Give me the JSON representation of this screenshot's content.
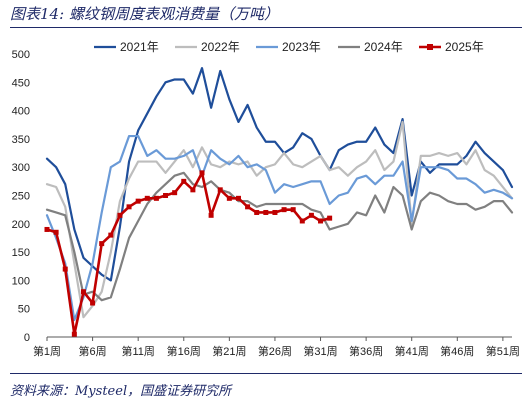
{
  "figure": {
    "title_prefix": "图表14:",
    "title_text": "螺纹钢周度表观消费量（万吨）",
    "source": "资料来源：Mysteel，国盛证券研究所"
  },
  "chart_data": {
    "type": "line",
    "ylim": [
      0,
      500
    ],
    "yticks": [
      0,
      50,
      100,
      150,
      200,
      250,
      300,
      350,
      400,
      450,
      500
    ],
    "xlim": [
      1,
      52
    ],
    "xticks": [
      1,
      6,
      11,
      16,
      21,
      26,
      31,
      36,
      41,
      46,
      51
    ],
    "xtick_labels": [
      "第1周",
      "第6周",
      "第11周",
      "第16周",
      "第21周",
      "第26周",
      "第31周",
      "第36周",
      "第41周",
      "第46周",
      "第51周"
    ],
    "legend_position": "top",
    "grid": false,
    "series": [
      {
        "name": "2021年",
        "color": "#1f4e9a",
        "width": 2.2,
        "marker": false,
        "values": [
          315,
          300,
          270,
          190,
          140,
          125,
          110,
          100,
          195,
          310,
          365,
          395,
          425,
          450,
          455,
          455,
          430,
          475,
          405,
          470,
          420,
          380,
          410,
          370,
          345,
          345,
          325,
          335,
          360,
          350,
          320,
          295,
          330,
          340,
          345,
          345,
          370,
          340,
          325,
          385,
          250,
          310,
          290,
          305,
          305,
          305,
          320,
          345,
          325,
          310,
          295,
          265
        ]
      },
      {
        "name": "2022年",
        "color": "#bdbdbd",
        "width": 2.2,
        "marker": false,
        "values": [
          270,
          265,
          230,
          130,
          35,
          55,
          80,
          150,
          240,
          280,
          310,
          310,
          310,
          290,
          310,
          330,
          300,
          335,
          305,
          300,
          310,
          305,
          310,
          285,
          300,
          305,
          325,
          305,
          300,
          310,
          320,
          295,
          300,
          285,
          300,
          310,
          330,
          295,
          310,
          380,
          200,
          320,
          320,
          325,
          320,
          325,
          305,
          330,
          295,
          285,
          265,
          245
        ]
      },
      {
        "name": "2023年",
        "color": "#6a9ad7",
        "width": 2.2,
        "marker": false,
        "values": [
          215,
          175,
          130,
          30,
          70,
          130,
          220,
          300,
          310,
          355,
          355,
          320,
          330,
          315,
          315,
          320,
          330,
          285,
          330,
          315,
          305,
          320,
          300,
          305,
          295,
          255,
          270,
          265,
          270,
          275,
          275,
          235,
          250,
          255,
          280,
          285,
          270,
          285,
          285,
          310,
          205,
          300,
          300,
          300,
          295,
          280,
          280,
          270,
          255,
          260,
          255,
          245
        ]
      },
      {
        "name": "2024年",
        "color": "#808080",
        "width": 2.2,
        "marker": false,
        "values": [
          225,
          220,
          215,
          150,
          75,
          80,
          65,
          70,
          120,
          175,
          205,
          235,
          255,
          270,
          285,
          290,
          270,
          265,
          275,
          260,
          255,
          240,
          240,
          230,
          235,
          235,
          235,
          235,
          235,
          225,
          220,
          190,
          195,
          200,
          220,
          215,
          250,
          220,
          265,
          250,
          190,
          240,
          255,
          250,
          240,
          235,
          235,
          225,
          230,
          240,
          240,
          220
        ]
      },
      {
        "name": "2025年",
        "color": "#c00000",
        "width": 2.6,
        "marker": true,
        "values": [
          190,
          185,
          120,
          5,
          80,
          60,
          165,
          180,
          215,
          230,
          240,
          245,
          245,
          250,
          255,
          275,
          260,
          290,
          215,
          260,
          245,
          245,
          230,
          220,
          220,
          220,
          225,
          225,
          205,
          215,
          205,
          210
        ]
      }
    ]
  }
}
